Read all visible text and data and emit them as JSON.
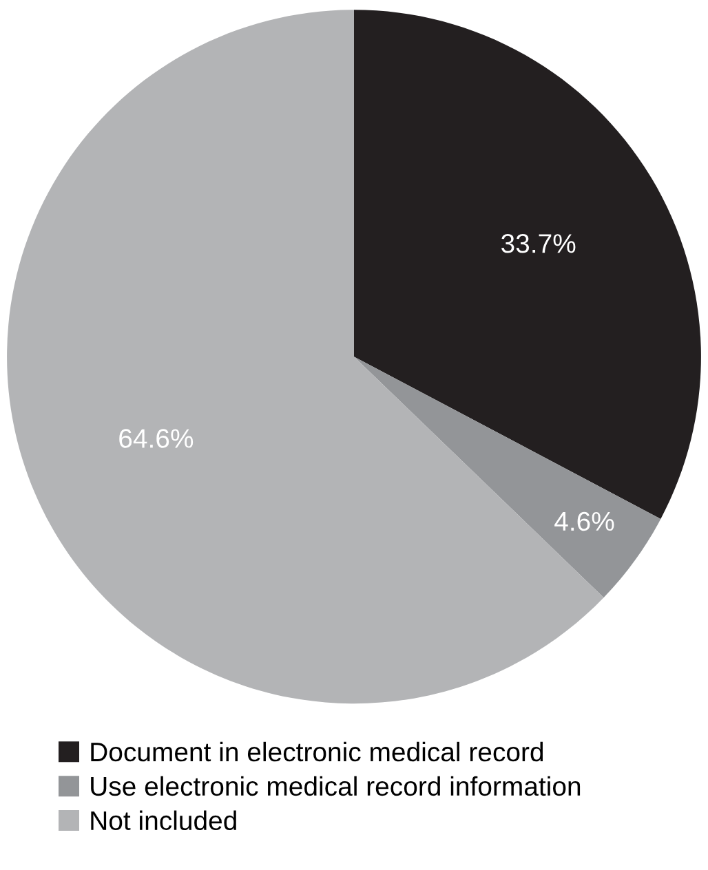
{
  "chart_data": {
    "type": "pie",
    "categories": [
      "Document in electronic medical record",
      "Use electronic medical record information",
      "Not included"
    ],
    "values": [
      33.7,
      4.6,
      64.6
    ],
    "colors": [
      "#231f20",
      "#939598",
      "#b3b4b6"
    ],
    "value_labels": [
      "33.7%",
      "4.6%",
      "64.6%"
    ],
    "legend": "bottom"
  }
}
